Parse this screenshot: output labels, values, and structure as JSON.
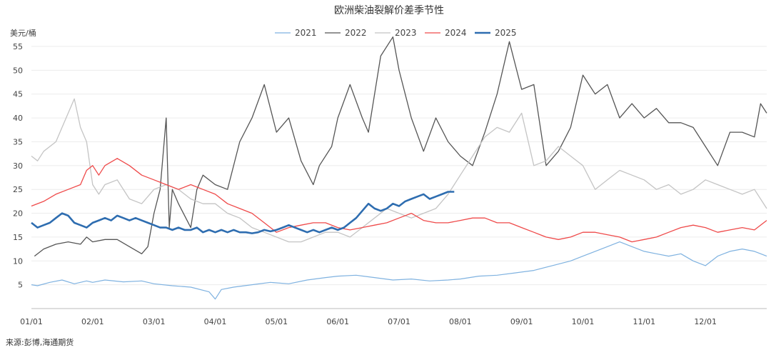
{
  "chart_data": {
    "type": "line",
    "title": "欧洲柴油裂解价差季节性",
    "ylabel": "美元/桶",
    "xlabel": "",
    "ylim": [
      0,
      58
    ],
    "yticks": [
      5,
      10,
      15,
      20,
      25,
      30,
      35,
      40,
      45,
      50,
      55
    ],
    "x_domain": [
      0,
      12
    ],
    "xticks": [
      {
        "x": 0,
        "label": "01/01"
      },
      {
        "x": 1,
        "label": "02/01"
      },
      {
        "x": 2,
        "label": "03/01"
      },
      {
        "x": 3,
        "label": "04/01"
      },
      {
        "x": 4,
        "label": "05/01"
      },
      {
        "x": 5,
        "label": "06/01"
      },
      {
        "x": 6,
        "label": "07/01"
      },
      {
        "x": 7,
        "label": "08/01"
      },
      {
        "x": 8,
        "label": "09/01"
      },
      {
        "x": 9,
        "label": "10/01"
      },
      {
        "x": 10,
        "label": "11/01"
      },
      {
        "x": 11,
        "label": "12/01"
      }
    ],
    "legend_position": "top-center",
    "grid": "horizontal",
    "series": [
      {
        "name": "2021",
        "color": "#7fb2e0",
        "width": 1.2,
        "x": [
          0,
          0.1,
          0.3,
          0.5,
          0.7,
          0.9,
          1.0,
          1.2,
          1.5,
          1.8,
          2.0,
          2.3,
          2.6,
          2.9,
          3.0,
          3.1,
          3.3,
          3.6,
          3.9,
          4.2,
          4.5,
          4.8,
          5.0,
          5.3,
          5.6,
          5.9,
          6.2,
          6.5,
          6.8,
          7.0,
          7.3,
          7.6,
          7.9,
          8.2,
          8.5,
          8.8,
          9.0,
          9.2,
          9.4,
          9.6,
          9.8,
          10.0,
          10.2,
          10.4,
          10.6,
          10.8,
          11.0,
          11.2,
          11.4,
          11.6,
          11.8,
          12.0
        ],
        "y": [
          5,
          4.8,
          5.5,
          6,
          5.2,
          5.8,
          5.5,
          6,
          5.6,
          5.8,
          5.2,
          4.8,
          4.5,
          3.5,
          2,
          4,
          4.5,
          5,
          5.5,
          5.2,
          6,
          6.5,
          6.8,
          7,
          6.5,
          6,
          6.2,
          5.8,
          6,
          6.2,
          6.8,
          7,
          7.5,
          8,
          9,
          10,
          11,
          12,
          13,
          14,
          13,
          12,
          11.5,
          11,
          11.5,
          10,
          9,
          11,
          12,
          12.5,
          12,
          11
        ]
      },
      {
        "name": "2022",
        "color": "#555555",
        "width": 1.3,
        "x": [
          0.05,
          0.2,
          0.4,
          0.6,
          0.8,
          0.9,
          1.0,
          1.2,
          1.4,
          1.6,
          1.8,
          1.9,
          2.0,
          2.1,
          2.2,
          2.25,
          2.3,
          2.4,
          2.6,
          2.7,
          2.8,
          3.0,
          3.2,
          3.4,
          3.6,
          3.8,
          4.0,
          4.2,
          4.4,
          4.6,
          4.7,
          4.9,
          5.0,
          5.2,
          5.4,
          5.5,
          5.7,
          5.9,
          6.0,
          6.2,
          6.4,
          6.6,
          6.8,
          7.0,
          7.2,
          7.4,
          7.6,
          7.8,
          8.0,
          8.2,
          8.4,
          8.6,
          8.8,
          9.0,
          9.2,
          9.4,
          9.6,
          9.8,
          10.0,
          10.2,
          10.4,
          10.6,
          10.8,
          11.0,
          11.2,
          11.4,
          11.6,
          11.8,
          11.9,
          12.0
        ],
        "y": [
          11,
          12.5,
          13.5,
          14,
          13.5,
          15,
          14,
          14.5,
          14.5,
          13,
          11.5,
          13,
          20,
          25,
          40,
          17,
          25,
          22,
          17,
          25,
          28,
          26,
          25,
          35,
          40,
          47,
          37,
          40,
          31,
          26,
          30,
          34,
          40,
          47,
          40,
          37,
          53,
          57,
          50,
          40,
          33,
          40,
          35,
          32,
          30,
          37,
          45,
          56,
          46,
          47,
          30,
          33,
          38,
          49,
          45,
          47,
          40,
          43,
          40,
          42,
          39,
          39,
          38,
          34,
          30,
          37,
          37,
          36,
          43,
          41
        ]
      },
      {
        "name": "2023",
        "color": "#c4c4c4",
        "width": 1.3,
        "x": [
          0,
          0.1,
          0.2,
          0.4,
          0.6,
          0.7,
          0.8,
          0.9,
          1.0,
          1.1,
          1.2,
          1.4,
          1.6,
          1.8,
          2.0,
          2.2,
          2.4,
          2.6,
          2.8,
          3.0,
          3.2,
          3.4,
          3.6,
          3.8,
          4.0,
          4.2,
          4.4,
          4.6,
          4.8,
          5.0,
          5.2,
          5.4,
          5.6,
          5.8,
          6.0,
          6.2,
          6.4,
          6.6,
          6.8,
          7.0,
          7.2,
          7.4,
          7.6,
          7.8,
          8.0,
          8.2,
          8.4,
          8.6,
          8.8,
          9.0,
          9.2,
          9.4,
          9.6,
          9.8,
          10.0,
          10.2,
          10.4,
          10.6,
          10.8,
          11.0,
          11.2,
          11.4,
          11.6,
          11.8,
          12.0
        ],
        "y": [
          32,
          31,
          33,
          35,
          41,
          44,
          38,
          35,
          26,
          24,
          26,
          27,
          23,
          22,
          25,
          26,
          25,
          23,
          22,
          22,
          20,
          19,
          17,
          16,
          15,
          14,
          14,
          15,
          16,
          16,
          15,
          17,
          19,
          21,
          20,
          19,
          20,
          21,
          24,
          28,
          32,
          36,
          38,
          37,
          41,
          30,
          31,
          34,
          32,
          30,
          25,
          27,
          29,
          28,
          27,
          25,
          26,
          24,
          25,
          27,
          26,
          25,
          24,
          25,
          21
        ]
      },
      {
        "name": "2024",
        "color": "#ef4a4a",
        "width": 1.3,
        "x": [
          0,
          0.2,
          0.4,
          0.6,
          0.8,
          0.9,
          1.0,
          1.1,
          1.2,
          1.4,
          1.6,
          1.8,
          2.0,
          2.2,
          2.4,
          2.6,
          2.8,
          3.0,
          3.2,
          3.4,
          3.6,
          3.8,
          4.0,
          4.2,
          4.4,
          4.6,
          4.8,
          5.0,
          5.2,
          5.4,
          5.6,
          5.8,
          6.0,
          6.2,
          6.4,
          6.6,
          6.8,
          7.0,
          7.2,
          7.4,
          7.6,
          7.8,
          8.0,
          8.2,
          8.4,
          8.6,
          8.8,
          9.0,
          9.2,
          9.4,
          9.6,
          9.8,
          10.0,
          10.2,
          10.4,
          10.6,
          10.8,
          11.0,
          11.2,
          11.4,
          11.6,
          11.8,
          12.0
        ],
        "y": [
          21.5,
          22.5,
          24,
          25,
          26,
          29,
          30,
          28,
          30,
          31.5,
          30,
          28,
          27,
          26,
          25,
          26,
          25,
          24,
          22,
          21,
          20,
          18,
          16,
          17,
          17.5,
          18,
          18,
          17,
          16.5,
          17,
          17.5,
          18,
          19,
          20,
          18.5,
          18,
          18,
          18.5,
          19,
          19,
          18,
          18,
          17,
          16,
          15,
          14.5,
          15,
          16,
          16,
          15.5,
          15,
          14,
          14.5,
          15,
          16,
          17,
          17.5,
          17,
          16,
          16.5,
          17,
          16.5,
          18.5
        ]
      },
      {
        "name": "2025",
        "color": "#2e6db0",
        "width": 2.6,
        "x": [
          0,
          0.1,
          0.2,
          0.3,
          0.4,
          0.5,
          0.6,
          0.7,
          0.8,
          0.9,
          1.0,
          1.1,
          1.2,
          1.3,
          1.4,
          1.5,
          1.6,
          1.7,
          1.8,
          1.9,
          2.0,
          2.1,
          2.2,
          2.3,
          2.4,
          2.5,
          2.6,
          2.7,
          2.8,
          2.9,
          3.0,
          3.1,
          3.2,
          3.3,
          3.4,
          3.5,
          3.6,
          3.7,
          3.8,
          3.9,
          4.0,
          4.1,
          4.2,
          4.3,
          4.4,
          4.5,
          4.6,
          4.7,
          4.8,
          4.9,
          5.0,
          5.1,
          5.2,
          5.3,
          5.4,
          5.5,
          5.6,
          5.7,
          5.8,
          5.9,
          6.0,
          6.1,
          6.2,
          6.3,
          6.4,
          6.5,
          6.6,
          6.7,
          6.8,
          6.9
        ],
        "y": [
          18,
          17,
          17.5,
          18,
          19,
          20,
          19.5,
          18,
          17.5,
          17,
          18,
          18.5,
          19,
          18.5,
          19.5,
          19,
          18.5,
          19,
          18.5,
          18,
          17.5,
          17,
          17,
          16.5,
          17,
          16.5,
          16.5,
          17,
          16,
          16.5,
          16,
          16.5,
          16,
          16.5,
          16,
          16,
          15.8,
          16,
          16.5,
          16.2,
          16.5,
          17,
          17.5,
          17,
          16.5,
          16,
          16.5,
          16,
          16.5,
          17,
          16.5,
          17,
          18,
          19,
          20.5,
          22,
          21,
          20.5,
          21,
          22,
          21.5,
          22.5,
          23,
          23.5,
          24,
          23,
          23.5,
          24,
          24.5,
          24.5
        ]
      }
    ]
  },
  "source_note": "来源:彭博,海通期货"
}
